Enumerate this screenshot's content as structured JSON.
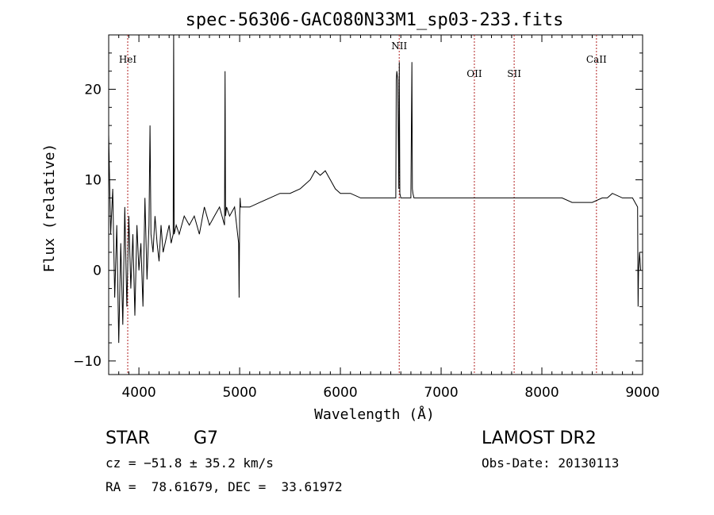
{
  "chart_data": {
    "type": "line",
    "title": "spec-56306-GAC080N33M1_sp03-233.fits",
    "xlabel": "Wavelength (Å)",
    "ylabel": "Flux (relative)",
    "xlim": [
      3700,
      9000
    ],
    "ylim": [
      -11.5,
      26
    ],
    "x_ticks": [
      4000,
      5000,
      6000,
      7000,
      8000,
      9000
    ],
    "x_tick_labels": [
      "4000",
      "5000",
      "6000",
      "7000",
      "8000",
      "9000"
    ],
    "y_ticks": [
      -10,
      0,
      10,
      20
    ],
    "y_tick_labels": [
      "−10",
      "0",
      "10",
      "20"
    ],
    "grid": false,
    "line_color": "#000000",
    "marker_color": "#b22222",
    "series": [
      {
        "values_note": "",
        "x": [
          3700,
          3720,
          3740,
          3760,
          3780,
          3800,
          3820,
          3840,
          3860,
          3880,
          3900,
          3920,
          3940,
          3960,
          3980,
          4000,
          4020,
          4040,
          4060,
          4080,
          4100,
          4110,
          4120,
          4140,
          4160,
          4180,
          4200,
          4220,
          4240,
          4260,
          4280,
          4300,
          4320,
          4340,
          4345,
          4350,
          4370,
          4400,
          4450,
          4500,
          4550,
          4600,
          4650,
          4700,
          4750,
          4800,
          4850,
          4855,
          4860,
          4870,
          4900,
          4950,
          4990,
          4995,
          5000,
          5005,
          5010,
          5050,
          5100,
          5200,
          5300,
          5400,
          5500,
          5600,
          5700,
          5750,
          5800,
          5850,
          5900,
          5950,
          6000,
          6100,
          6200,
          6300,
          6400,
          6500,
          6550,
          6555,
          6560,
          6570,
          6580,
          6585,
          6590,
          6600,
          6650,
          6700,
          6710,
          6715,
          6720,
          6730,
          6740,
          6800,
          6900,
          7000,
          7100,
          7200,
          7300,
          7400,
          7500,
          7600,
          7700,
          7800,
          7900,
          8000,
          8100,
          8200,
          8300,
          8400,
          8500,
          8600,
          8650,
          8700,
          8800,
          8900,
          8950,
          8955,
          8960,
          8970,
          8980
        ],
        "y": [
          15,
          4,
          9,
          -3,
          5,
          -8,
          3,
          -6,
          7,
          -4,
          6,
          -2,
          4,
          -5,
          5,
          0,
          3,
          -4,
          8,
          -1,
          5,
          16,
          4,
          2,
          6,
          3,
          1,
          5,
          2,
          3,
          4,
          5,
          3,
          4,
          26,
          4,
          5,
          4,
          6,
          5,
          6,
          4,
          7,
          5,
          6,
          7,
          5,
          22,
          6,
          7,
          6,
          7,
          3,
          -3,
          6,
          8,
          7,
          7,
          7,
          7.5,
          8,
          8.5,
          8.5,
          9,
          10,
          11,
          10.5,
          11,
          10,
          9,
          8.5,
          8.5,
          8,
          8,
          8,
          8,
          8,
          21,
          22,
          21,
          9,
          23,
          8.5,
          8,
          8,
          8,
          23,
          9,
          8.5,
          8,
          8,
          8,
          8,
          8,
          8,
          8,
          8,
          8,
          8,
          8,
          8,
          8,
          8,
          8,
          8,
          8,
          7.5,
          7.5,
          7.5,
          8,
          8,
          8.5,
          8,
          8,
          7,
          -4,
          0,
          2,
          0
        ]
      }
    ],
    "line_markers": [
      {
        "label": "HeI",
        "x": 3889
      },
      {
        "label": "NII",
        "x": 6584
      },
      {
        "label": "OII",
        "x": 7330
      },
      {
        "label": "SII",
        "x": 7725
      },
      {
        "label": "CaII",
        "x": 8542
      }
    ]
  },
  "info": {
    "class_label": "STAR",
    "subclass_label": "G7",
    "survey": "LAMOST DR2",
    "cz_text": "cz = −51.8 ± 35.2 km/s",
    "obs_date_text": "Obs-Date: 20130113",
    "radec_text": "RA =  78.61679, DEC =  33.61972"
  }
}
